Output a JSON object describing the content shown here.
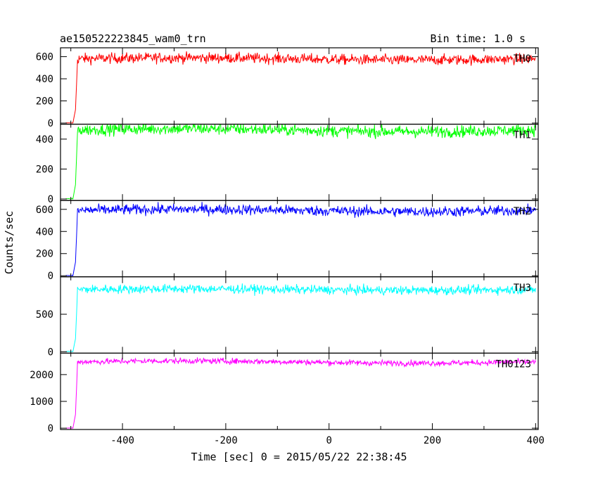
{
  "chart_data": {
    "type": "line",
    "title": "ae150522223845_wam0_trn",
    "bin_time_label": "Bin time: 1.0 s",
    "xlabel": "Time [sec] 0 = 2015/05/22 22:38:45",
    "ylabel": "Counts/sec",
    "xlim": [
      -520,
      405
    ],
    "x_ticks": [
      -400,
      -200,
      0,
      200,
      400
    ],
    "trigger_time": -490,
    "bin_width": 1.0,
    "panels": [
      {
        "name": "TH0",
        "color": "#ff0000",
        "ylim": [
          -10,
          680
        ],
        "y_ticks": [
          0,
          200,
          400,
          600
        ],
        "pre_level": 0,
        "level": 580,
        "noise": 24,
        "drift": 10
      },
      {
        "name": "TH1",
        "color": "#00ff00",
        "ylim": [
          -10,
          500
        ],
        "y_ticks": [
          0,
          200,
          400
        ],
        "pre_level": 0,
        "level": 460,
        "noise": 20,
        "drift": 10
      },
      {
        "name": "TH2",
        "color": "#0000ff",
        "ylim": [
          -10,
          680
        ],
        "y_ticks": [
          0,
          200,
          400,
          600
        ],
        "pre_level": 0,
        "level": 590,
        "noise": 24,
        "drift": 10
      },
      {
        "name": "TH3",
        "color": "#00ffff",
        "ylim": [
          -20,
          1000
        ],
        "y_ticks": [
          0,
          500
        ],
        "pre_level": 0,
        "level": 830,
        "noise": 30,
        "drift": 10
      },
      {
        "name": "TH0123",
        "color": "#ff00ff",
        "ylim": [
          -50,
          2800
        ],
        "y_ticks": [
          0,
          1000,
          2000
        ],
        "pre_level": 0,
        "level": 2470,
        "noise": 55,
        "drift": 40
      }
    ]
  }
}
